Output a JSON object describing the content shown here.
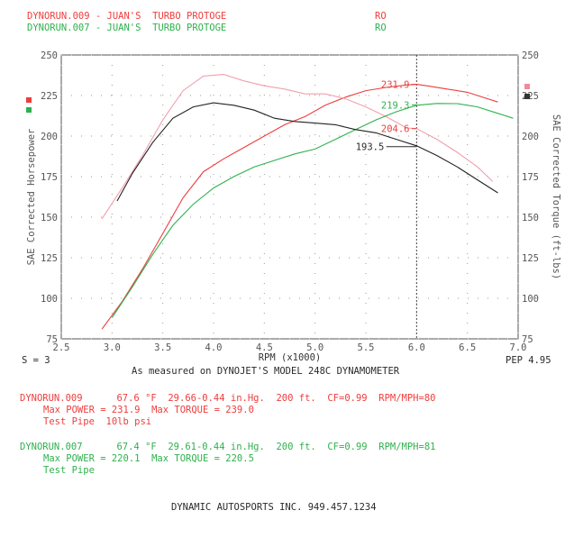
{
  "header": {
    "run1": {
      "name": "DYNORUN.009 - JUAN'S  TURBO PROTOGE",
      "code": "RO",
      "color": "#ee3d3d"
    },
    "run2": {
      "name": "DYNORUN.007 - JUAN'S  TURBO PROTOGE",
      "code": "RO",
      "color": "#2fb14d"
    }
  },
  "chart_data": {
    "type": "line",
    "xlabel": "RPM (x1000)",
    "ylabel_left": "SAE Corrected Horsepower",
    "ylabel_right": "SAE Corrected Torque (ft-lbs)",
    "xlim": [
      2.5,
      7.0
    ],
    "ylim": [
      75,
      250
    ],
    "x_ticks": [
      "2.5",
      "3.0",
      "3.5",
      "4.0",
      "4.5",
      "5.0",
      "5.5",
      "6.0",
      "6.5",
      "7.0"
    ],
    "y_ticks": [
      "75",
      "100",
      "125",
      "150",
      "175",
      "200",
      "225",
      "250"
    ],
    "grid": "dotted",
    "cursor_rpm": 6.0,
    "series": [
      {
        "name": "DYNORUN.009",
        "kind": "power",
        "color": "#ee3d3d",
        "x": [
          2.9,
          3.1,
          3.3,
          3.5,
          3.7,
          3.9,
          4.1,
          4.3,
          4.5,
          4.7,
          4.9,
          5.1,
          5.3,
          5.5,
          5.7,
          5.9,
          6.0,
          6.1,
          6.3,
          6.5,
          6.7,
          6.8
        ],
        "y": [
          81,
          98,
          118,
          140,
          162,
          178,
          186,
          193,
          200,
          207,
          212,
          219,
          224,
          228,
          230,
          231.5,
          231.9,
          231,
          229,
          227,
          223,
          221
        ]
      },
      {
        "name": "DYNORUN.009",
        "kind": "torque",
        "color": "#ee3d3d",
        "x": [
          2.9,
          3.1,
          3.3,
          3.5,
          3.7,
          3.9,
          4.1,
          4.3,
          4.5,
          4.7,
          4.9,
          5.1,
          5.3,
          5.5,
          5.7,
          5.9,
          6.0,
          6.2,
          6.4,
          6.6,
          6.75
        ],
        "y": [
          149,
          168,
          188,
          210,
          228,
          237,
          238,
          234,
          231,
          229,
          226,
          226,
          223,
          218,
          212,
          205,
          204.6,
          198,
          190,
          181,
          172
        ]
      },
      {
        "name": "DYNORUN.007",
        "kind": "power",
        "color": "#2fb14d",
        "x": [
          3.0,
          3.2,
          3.4,
          3.6,
          3.8,
          4.0,
          4.2,
          4.4,
          4.6,
          4.8,
          5.0,
          5.2,
          5.4,
          5.6,
          5.8,
          6.0,
          6.2,
          6.4,
          6.6,
          6.8,
          6.95
        ],
        "y": [
          88,
          107,
          127,
          145,
          158,
          168,
          175,
          181,
          185,
          189,
          192,
          198,
          204,
          210,
          215,
          219,
          220.1,
          220,
          218,
          214,
          211
        ]
      },
      {
        "name": "DYNORUN.007",
        "kind": "torque",
        "color": "#2fb14d",
        "x": [
          3.05,
          3.2,
          3.4,
          3.6,
          3.8,
          4.0,
          4.2,
          4.4,
          4.6,
          4.8,
          5.0,
          5.2,
          5.4,
          5.6,
          5.8,
          6.0,
          6.2,
          6.4,
          6.6,
          6.8
        ],
        "y": [
          160,
          177,
          196,
          211,
          218,
          220.5,
          219,
          216,
          211,
          209,
          208,
          207,
          204,
          202,
          198,
          194,
          188,
          181,
          173,
          165
        ]
      }
    ],
    "annotations": [
      {
        "text": "231.9",
        "x": 5.65,
        "y": 231.9,
        "color": "#ee3d3d"
      },
      {
        "text": "219.3",
        "x": 5.65,
        "y": 219.3,
        "color": "#2fb14d"
      },
      {
        "text": "204.6",
        "x": 5.65,
        "y": 204.6,
        "color": "#ee3d3d"
      },
      {
        "text": "193.5",
        "x": 5.4,
        "y": 193.5,
        "color": "#2a2a2a"
      }
    ]
  },
  "chart_footer": {
    "s_label": "S = 3",
    "pep_label": "PEP 4.95",
    "measured": "As measured on DYNOJET'S MODEL 248C DYNAMOMETER"
  },
  "runs": [
    {
      "line1": "DYNORUN.009      67.6 °F  29.66-0.44 in.Hg.  200 ft.  CF=0.99  RPM/MPH=80",
      "line2": "Max POWER = 231.9  Max TORQUE = 239.0",
      "line3": "Test Pipe  10lb psi"
    },
    {
      "line1": "DYNORUN.007      67.4 °F  29.61-0.44 in.Hg.  200 ft.  CF=0.99  RPM/MPH=81",
      "line2": "Max POWER = 220.1  Max TORQUE = 220.5",
      "line3": "Test Pipe"
    }
  ],
  "footer": {
    "company": "DYNAMIC AUTOSPORTS INC. 949.457.1234"
  },
  "colors": {
    "red": "#ee3d3d",
    "green": "#2fb14d",
    "black": "#2a2a2a",
    "axis": "#555555"
  }
}
